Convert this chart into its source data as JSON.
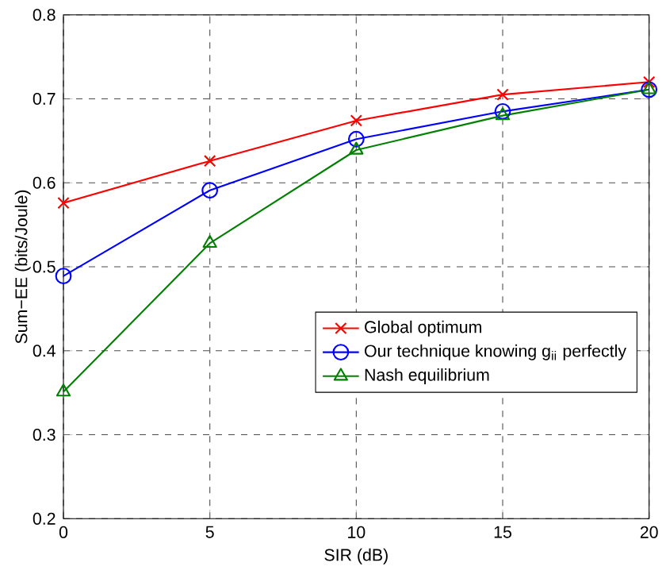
{
  "chart_data": {
    "type": "line",
    "xlabel": "SIR (dB)",
    "ylabel": "Sum−EE (bits/Joule)",
    "x": [
      0,
      5,
      10,
      15,
      20
    ],
    "xlim": [
      0,
      20
    ],
    "xticks": [
      0,
      5,
      10,
      15,
      20
    ],
    "ylim": [
      0.2,
      0.8
    ],
    "yticks": [
      0.2,
      0.3,
      0.4,
      0.5,
      0.6,
      0.7,
      0.8
    ],
    "grid": true,
    "legend": "right",
    "series": [
      {
        "name": "Global optimum",
        "color": "#ff0000",
        "marker": "cross",
        "values": [
          0.576,
          0.626,
          0.674,
          0.705,
          0.72
        ]
      },
      {
        "name": "Our technique knowing g$_{ii}$ perfectly",
        "color": "#0000ff",
        "marker": "circle",
        "values": [
          0.489,
          0.591,
          0.652,
          0.685,
          0.711
        ]
      },
      {
        "name": "Nash equilibrium",
        "color": "#008000",
        "marker": "triangle",
        "values": [
          0.351,
          0.528,
          0.639,
          0.68,
          0.711
        ]
      }
    ]
  }
}
